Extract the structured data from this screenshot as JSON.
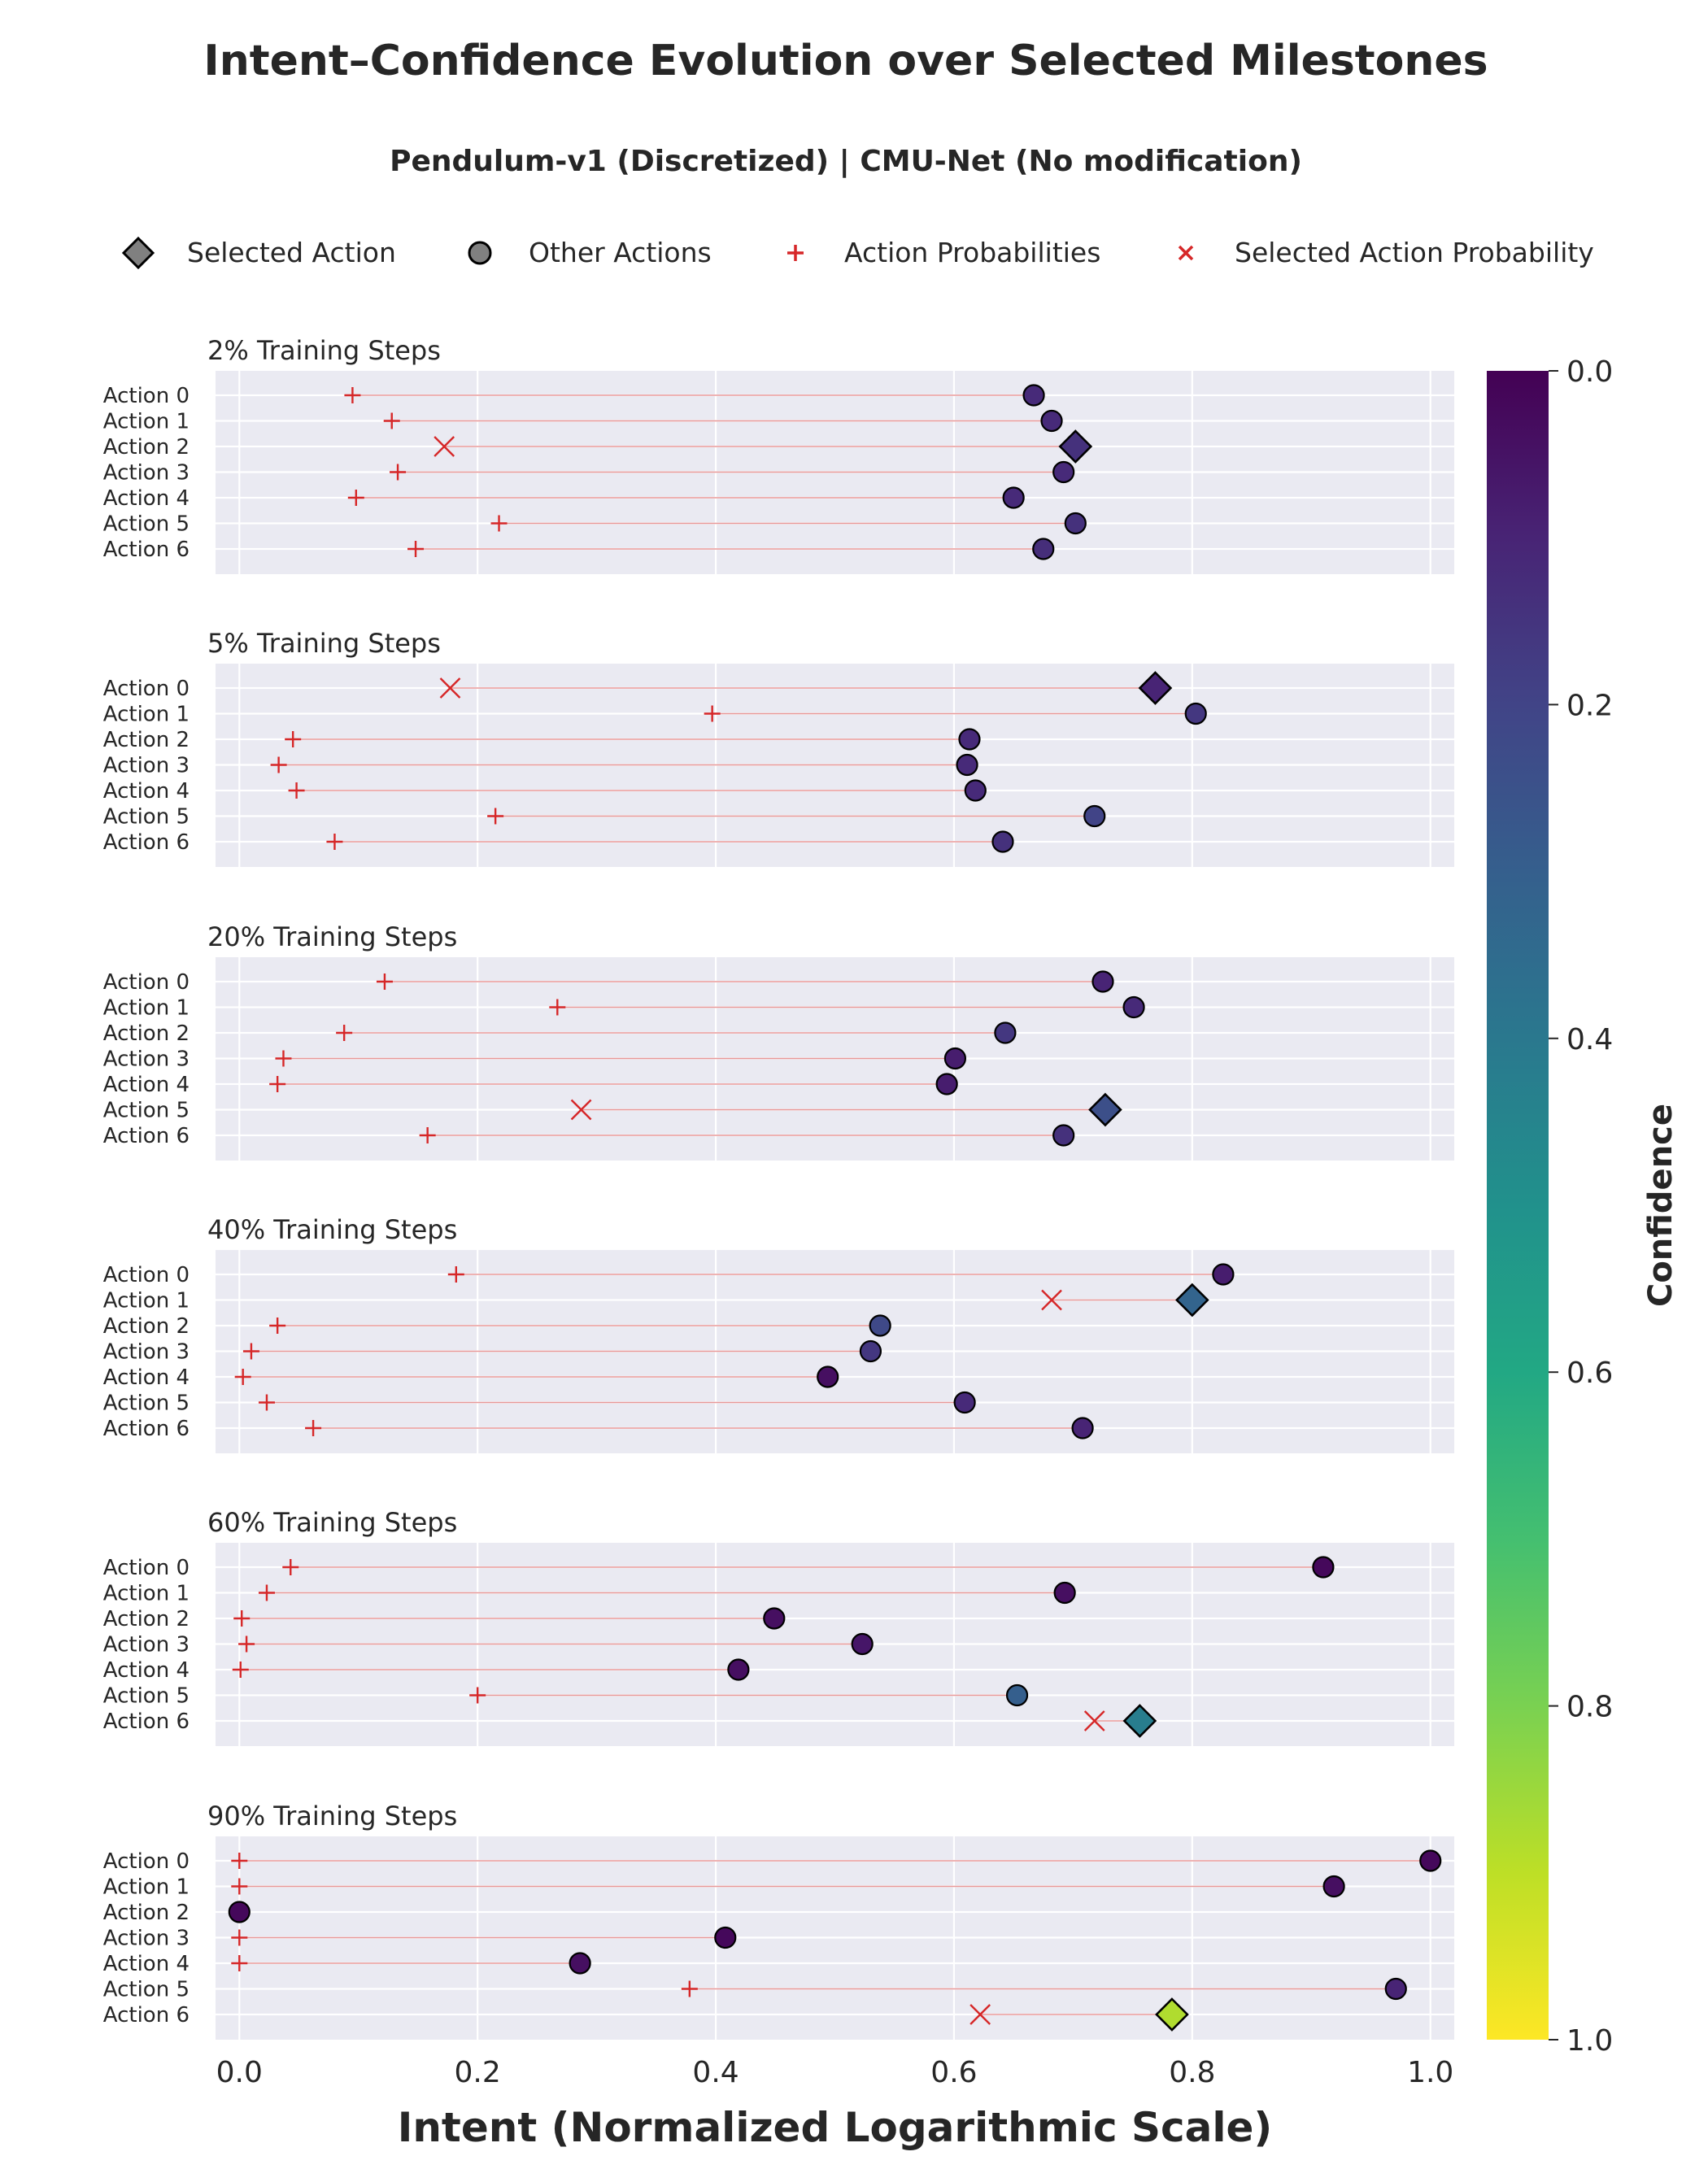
{
  "title": "Intent–Confidence Evolution over Selected Milestones",
  "subtitle": "Pendulum-v1 (Discretized) | CMU-Net (No modification)",
  "legend": [
    {
      "label": "Selected Action",
      "marker": "diamond"
    },
    {
      "label": "Other Actions",
      "marker": "circle"
    },
    {
      "label": "Action Probabilities",
      "marker": "plus"
    },
    {
      "label": "Selected Action Probability",
      "marker": "x"
    }
  ],
  "colors": {
    "panel_bg": "#eaeaf2",
    "grid": "#ffffff",
    "connector": "#e89898",
    "probability_marker": "#d62728",
    "marker_edge": "#000000",
    "legend_marker_fill": "#808080"
  },
  "chart_data": {
    "type": "scatter",
    "xlabel": "Intent (Normalized Logarithmic Scale)",
    "xlim": [
      -0.02,
      1.02
    ],
    "xticks": [
      "0.0",
      "0.2",
      "0.4",
      "0.6",
      "0.8",
      "1.0"
    ],
    "xtick_values": [
      0.0,
      0.2,
      0.4,
      0.6,
      0.8,
      1.0
    ],
    "colorbar": {
      "label": "Confidence",
      "colormap": "viridis",
      "range": [
        0.0,
        1.0
      ],
      "inverted": true,
      "ticks": [
        "0.0",
        "0.2",
        "0.4",
        "0.6",
        "0.8",
        "1.0"
      ],
      "tick_values": [
        0.0,
        0.2,
        0.4,
        0.6,
        0.8,
        1.0
      ]
    },
    "panels": [
      {
        "title": "2% Training Steps",
        "selected_action": 2,
        "actions": [
          {
            "label": "Action 0",
            "intent": 0.667,
            "probability": 0.095,
            "confidence": 0.12
          },
          {
            "label": "Action 1",
            "intent": 0.682,
            "probability": 0.128,
            "confidence": 0.12
          },
          {
            "label": "Action 2",
            "intent": 0.702,
            "probability": 0.172,
            "confidence": 0.14
          },
          {
            "label": "Action 3",
            "intent": 0.692,
            "probability": 0.133,
            "confidence": 0.12
          },
          {
            "label": "Action 4",
            "intent": 0.65,
            "probability": 0.098,
            "confidence": 0.12
          },
          {
            "label": "Action 5",
            "intent": 0.702,
            "probability": 0.218,
            "confidence": 0.14
          },
          {
            "label": "Action 6",
            "intent": 0.675,
            "probability": 0.148,
            "confidence": 0.13
          }
        ]
      },
      {
        "title": "5% Training Steps",
        "selected_action": 0,
        "actions": [
          {
            "label": "Action 0",
            "intent": 0.769,
            "probability": 0.177,
            "confidence": 0.1
          },
          {
            "label": "Action 1",
            "intent": 0.803,
            "probability": 0.397,
            "confidence": 0.16
          },
          {
            "label": "Action 2",
            "intent": 0.613,
            "probability": 0.045,
            "confidence": 0.12
          },
          {
            "label": "Action 3",
            "intent": 0.611,
            "probability": 0.033,
            "confidence": 0.12
          },
          {
            "label": "Action 4",
            "intent": 0.618,
            "probability": 0.048,
            "confidence": 0.12
          },
          {
            "label": "Action 5",
            "intent": 0.718,
            "probability": 0.215,
            "confidence": 0.2
          },
          {
            "label": "Action 6",
            "intent": 0.641,
            "probability": 0.08,
            "confidence": 0.14
          }
        ]
      },
      {
        "title": "20% Training Steps",
        "selected_action": 5,
        "actions": [
          {
            "label": "Action 0",
            "intent": 0.725,
            "probability": 0.122,
            "confidence": 0.1
          },
          {
            "label": "Action 1",
            "intent": 0.751,
            "probability": 0.267,
            "confidence": 0.12
          },
          {
            "label": "Action 2",
            "intent": 0.643,
            "probability": 0.088,
            "confidence": 0.16
          },
          {
            "label": "Action 3",
            "intent": 0.601,
            "probability": 0.037,
            "confidence": 0.08
          },
          {
            "label": "Action 4",
            "intent": 0.594,
            "probability": 0.032,
            "confidence": 0.08
          },
          {
            "label": "Action 5",
            "intent": 0.727,
            "probability": 0.287,
            "confidence": 0.24
          },
          {
            "label": "Action 6",
            "intent": 0.692,
            "probability": 0.158,
            "confidence": 0.14
          }
        ]
      },
      {
        "title": "40% Training Steps",
        "selected_action": 1,
        "actions": [
          {
            "label": "Action 0",
            "intent": 0.826,
            "probability": 0.182,
            "confidence": 0.08
          },
          {
            "label": "Action 1",
            "intent": 0.8,
            "probability": 0.682,
            "confidence": 0.32
          },
          {
            "label": "Action 2",
            "intent": 0.538,
            "probability": 0.032,
            "confidence": 0.22
          },
          {
            "label": "Action 3",
            "intent": 0.53,
            "probability": 0.01,
            "confidence": 0.16
          },
          {
            "label": "Action 4",
            "intent": 0.494,
            "probability": 0.003,
            "confidence": 0.04
          },
          {
            "label": "Action 5",
            "intent": 0.609,
            "probability": 0.023,
            "confidence": 0.12
          },
          {
            "label": "Action 6",
            "intent": 0.708,
            "probability": 0.062,
            "confidence": 0.1
          }
        ]
      },
      {
        "title": "60% Training Steps",
        "selected_action": 6,
        "actions": [
          {
            "label": "Action 0",
            "intent": 0.91,
            "probability": 0.043,
            "confidence": 0.02
          },
          {
            "label": "Action 1",
            "intent": 0.693,
            "probability": 0.023,
            "confidence": 0.04
          },
          {
            "label": "Action 2",
            "intent": 0.449,
            "probability": 0.002,
            "confidence": 0.04
          },
          {
            "label": "Action 3",
            "intent": 0.523,
            "probability": 0.006,
            "confidence": 0.06
          },
          {
            "label": "Action 4",
            "intent": 0.419,
            "probability": 0.001,
            "confidence": 0.04
          },
          {
            "label": "Action 5",
            "intent": 0.653,
            "probability": 0.2,
            "confidence": 0.3
          },
          {
            "label": "Action 6",
            "intent": 0.756,
            "probability": 0.718,
            "confidence": 0.42
          }
        ]
      },
      {
        "title": "90% Training Steps",
        "selected_action": 6,
        "actions": [
          {
            "label": "Action 0",
            "intent": 1.0,
            "probability": 0.0,
            "confidence": 0.02
          },
          {
            "label": "Action 1",
            "intent": 0.919,
            "probability": 0.0,
            "confidence": 0.04
          },
          {
            "label": "Action 2",
            "intent": 0.0,
            "probability": 0.0,
            "confidence": 0.02
          },
          {
            "label": "Action 3",
            "intent": 0.408,
            "probability": 0.0,
            "confidence": 0.02
          },
          {
            "label": "Action 4",
            "intent": 0.286,
            "probability": 0.0,
            "confidence": 0.04
          },
          {
            "label": "Action 5",
            "intent": 0.971,
            "probability": 0.378,
            "confidence": 0.1
          },
          {
            "label": "Action 6",
            "intent": 0.783,
            "probability": 0.622,
            "confidence": 0.88
          }
        ]
      }
    ]
  }
}
